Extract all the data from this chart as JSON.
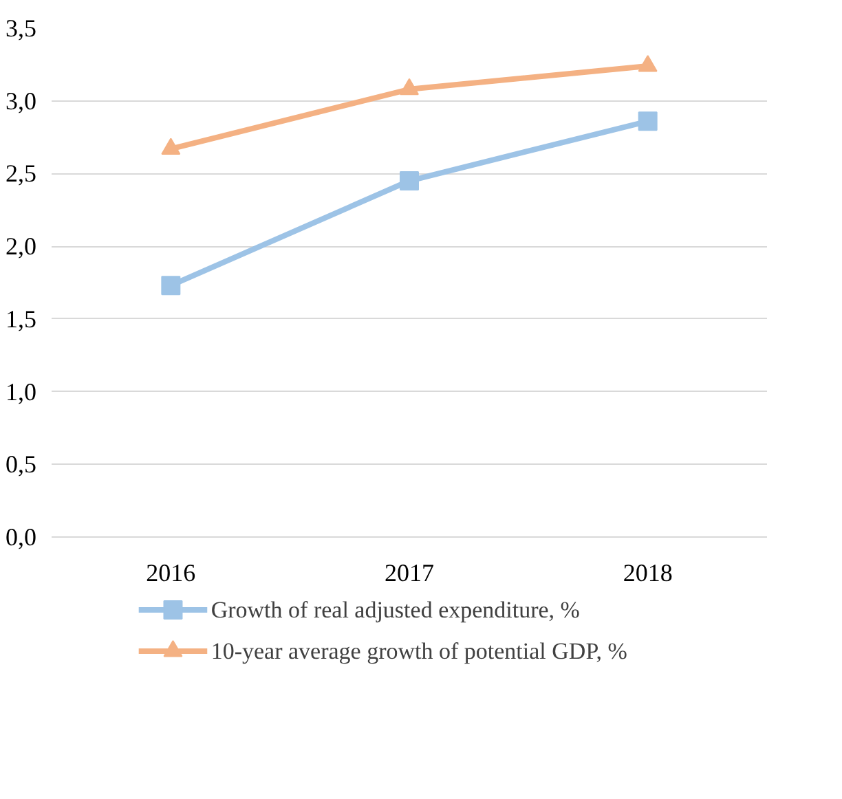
{
  "chart_data": {
    "type": "line",
    "categories": [
      "2016",
      "2017",
      "2018"
    ],
    "series": [
      {
        "name": "Growth of real adjusted expenditure, %",
        "color": "#9dc3e6",
        "marker": "square",
        "values": [
          1.73,
          2.45,
          2.86
        ]
      },
      {
        "name": "10-year average growth of potential GDP, %",
        "color": "#f4b183",
        "marker": "triangle",
        "values": [
          2.67,
          3.08,
          3.24
        ]
      }
    ],
    "ylim": [
      0,
      3.5
    ],
    "yticks": [
      {
        "value": 0,
        "label": "0,0"
      },
      {
        "value": 0.5,
        "label": "0,5"
      },
      {
        "value": 1.0,
        "label": "1,0"
      },
      {
        "value": 1.5,
        "label": "1,5"
      },
      {
        "value": 2.0,
        "label": "2,0"
      },
      {
        "value": 2.5,
        "label": "2,5"
      },
      {
        "value": 3.0,
        "label": "3,0"
      },
      {
        "value": 3.5,
        "label": "3,5"
      }
    ],
    "grid": "y",
    "legend": "bottom",
    "line_style": "solid"
  }
}
